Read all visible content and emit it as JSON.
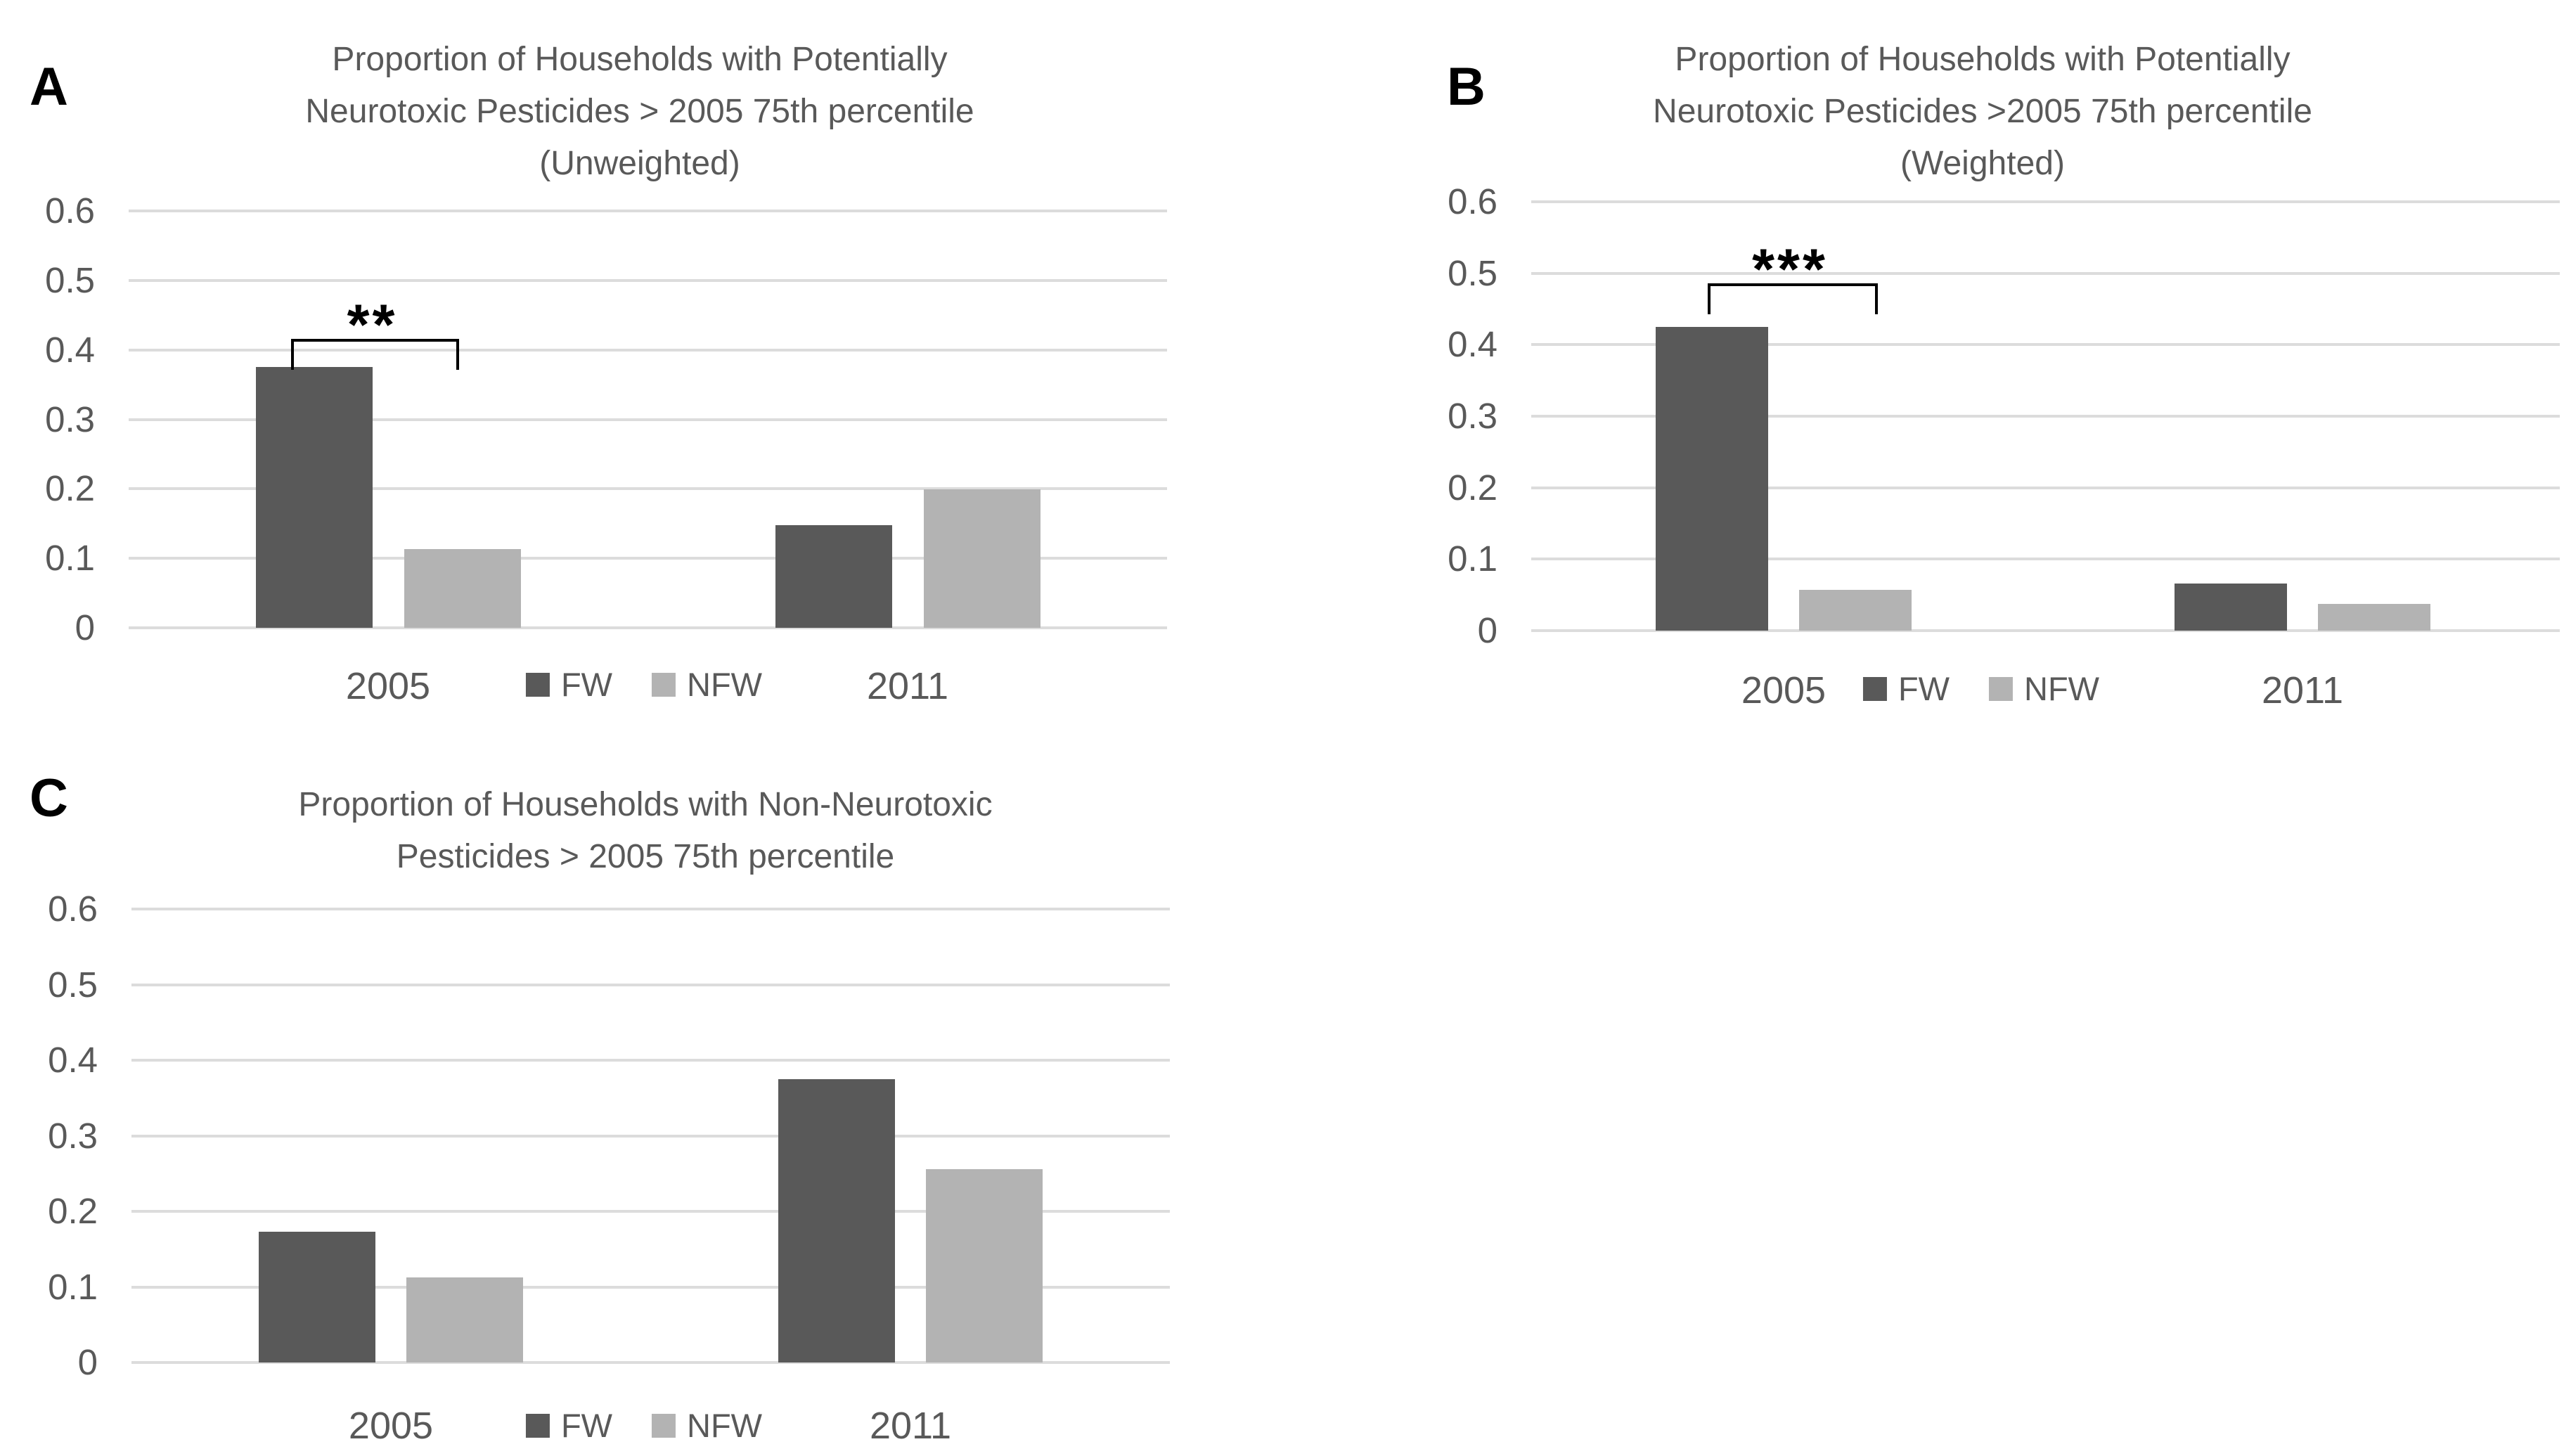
{
  "figure": {
    "background": "#ffffff",
    "description_visible_text_only": true
  },
  "colors": {
    "fw": "#595959",
    "nfw": "#b3b3b3",
    "gridline": "#dcdcdc",
    "axis_text": "#595959",
    "title_text": "#595959",
    "panel_letter": "#000000",
    "annotation": "#000000"
  },
  "legend": {
    "fw_label": "FW",
    "nfw_label": "NFW"
  },
  "chart_data": [
    {
      "id": "A",
      "panel_label": "A",
      "type": "bar",
      "title_lines": [
        "Proportion of Households with Potentially",
        "Neurotoxic Pesticides > 2005 75th percentile",
        "(Unweighted)"
      ],
      "categories": [
        "2005",
        "2011"
      ],
      "series": [
        {
          "name": "FW",
          "color_key": "fw",
          "values": [
            0.375,
            0.148
          ]
        },
        {
          "name": "NFW",
          "color_key": "nfw",
          "values": [
            0.113,
            0.199
          ]
        }
      ],
      "y_tick_labels": [
        "0.6",
        "0.5",
        "0.4",
        "0.3",
        "0.2",
        "0.1",
        "0"
      ],
      "ylim": [
        0,
        0.6
      ],
      "grid": true,
      "legend_position": "bottom-center-inline",
      "annotation": {
        "label": "**",
        "category": "2005",
        "spans": [
          "FW",
          "NFW"
        ],
        "bracket_top_value": 0.416
      }
    },
    {
      "id": "B",
      "panel_label": "B",
      "type": "bar",
      "title_lines": [
        "Proportion of Households with Potentially",
        "Neurotoxic Pesticides >2005 75th percentile",
        "(Weighted)"
      ],
      "categories": [
        "2005",
        "2011"
      ],
      "series": [
        {
          "name": "FW",
          "color_key": "fw",
          "values": [
            0.425,
            0.066
          ]
        },
        {
          "name": "NFW",
          "color_key": "nfw",
          "values": [
            0.057,
            0.037
          ]
        }
      ],
      "y_tick_labels": [
        "0.6",
        "0.5",
        "0.4",
        "0.3",
        "0.2",
        "0.1",
        "0"
      ],
      "ylim": [
        0,
        0.6
      ],
      "grid": true,
      "legend_position": "bottom-center-inline",
      "annotation": {
        "label": "***",
        "category": "2005",
        "spans": [
          "FW",
          "NFW"
        ],
        "bracket_top_value": 0.486
      }
    },
    {
      "id": "C",
      "panel_label": "C",
      "type": "bar",
      "title_lines": [
        "Proportion of Households with Non-Neurotoxic",
        "Pesticides > 2005 75th percentile"
      ],
      "categories": [
        "2005",
        "2011"
      ],
      "series": [
        {
          "name": "FW",
          "color_key": "fw",
          "values": [
            0.173,
            0.375
          ]
        },
        {
          "name": "NFW",
          "color_key": "nfw",
          "values": [
            0.113,
            0.256
          ]
        }
      ],
      "y_tick_labels": [
        "0.6",
        "0.5",
        "0.4",
        "0.3",
        "0.2",
        "0.1",
        "0"
      ],
      "ylim": [
        0,
        0.6
      ],
      "grid": true,
      "legend_position": "bottom-center-inline",
      "annotation": null
    }
  ]
}
